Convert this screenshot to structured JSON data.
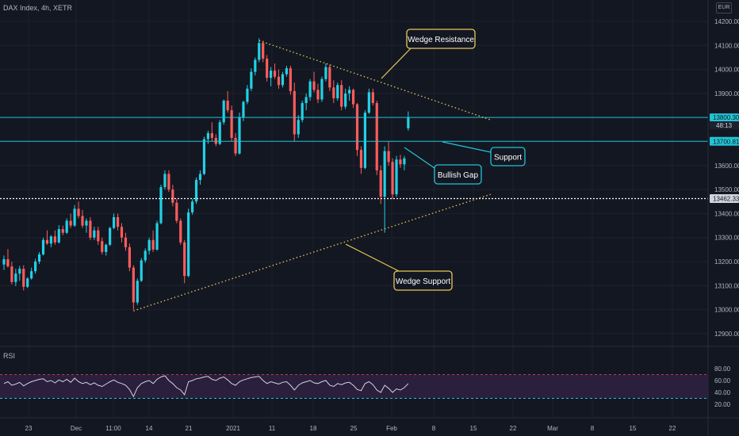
{
  "header": {
    "symbol": "DAX Index, 4h, XETR",
    "currency": "EUR",
    "rsi_label": "RSI"
  },
  "colors": {
    "background": "#131722",
    "up": "#26a69a",
    "down": "#ef5350",
    "up_bright": "#22d1e6",
    "down_bright": "#ff5c5c",
    "grid": "#1e222d",
    "hline": "#22c3d6",
    "dotted_line": "#ffffff",
    "wedge": "#e8c75a",
    "annotation_border_yellow": "#e8c75a",
    "annotation_border_cyan": "#22c3d6",
    "rsi_line": "#d1d4dc",
    "rsi_band": "#2a1f3d",
    "rsi_upper": "#c0394b",
    "rsi_lower": "#22c3d6"
  },
  "price_axis": {
    "labels": [
      "14200.000",
      "14100.000",
      "14000.000",
      "13900.000",
      "13800.300",
      "13700.818",
      "13600.000",
      "13500.000",
      "13462.332",
      "13400.000",
      "13300.000",
      "13200.000",
      "13100.000",
      "13000.000",
      "12900.000"
    ],
    "ticks": [
      14200,
      14100,
      14000,
      13900,
      13600,
      13500,
      13400,
      13300,
      13200,
      13100,
      13000,
      12900
    ],
    "tick_labels": [
      "14200.000",
      "14100.000",
      "14000.000",
      "13900.000",
      "13600.000",
      "13500.000",
      "13400.000",
      "13300.000",
      "13200.000",
      "13100.000",
      "13000.000",
      "12900.000"
    ]
  },
  "price_tags": {
    "current_price": "13800.300",
    "countdown": "48:13",
    "support_price": "13700.818",
    "dotted_price": "13462.332"
  },
  "time_axis": {
    "labels": [
      "23",
      "Dec",
      "11:00",
      "14",
      "21",
      "2021",
      "11",
      "18",
      "25",
      "Feb",
      "8",
      "15",
      "22",
      "Mar",
      "8",
      "15",
      "22"
    ]
  },
  "rsi_axis": {
    "labels": [
      "80.00",
      "60.00",
      "40.00",
      "20.00"
    ],
    "values": [
      80,
      60,
      40,
      20
    ],
    "upper_band": 70,
    "lower_band": 30
  },
  "annotations": {
    "wedge_resistance": "Wedge Resistance",
    "support": "Support",
    "bullish_gap": "Bullish Gap",
    "wedge_support": "Wedge Support"
  },
  "chart_data": {
    "type": "candlestick",
    "title": "DAX Index, 4h, XETR",
    "currency": "EUR",
    "timeframe": "4h",
    "ylim": [
      12850,
      14250
    ],
    "horizontal_lines": [
      {
        "label": "13800.300",
        "value": 13800.3,
        "style": "solid"
      },
      {
        "label": "13700.818",
        "value": 13700.818,
        "style": "solid"
      },
      {
        "label": "13462.332",
        "value": 13462.332,
        "style": "dotted"
      }
    ],
    "trendlines": [
      {
        "name": "Wedge Resistance",
        "from": {
          "bar": 65,
          "price": 14120
        },
        "to": {
          "bar": 124,
          "price": 13790
        }
      },
      {
        "name": "Wedge Support",
        "from": {
          "bar": 33,
          "price": 12995
        },
        "to": {
          "bar": 124,
          "price": 13480
        }
      }
    ],
    "candles": [
      [
        13188,
        13225,
        13165,
        13210
      ],
      [
        13210,
        13252,
        13175,
        13180
      ],
      [
        13180,
        13200,
        13105,
        13115
      ],
      [
        13115,
        13170,
        13098,
        13150
      ],
      [
        13150,
        13182,
        13120,
        13170
      ],
      [
        13170,
        13185,
        13080,
        13095
      ],
      [
        13095,
        13135,
        13090,
        13130
      ],
      [
        13130,
        13175,
        13125,
        13160
      ],
      [
        13160,
        13212,
        13150,
        13200
      ],
      [
        13200,
        13240,
        13190,
        13230
      ],
      [
        13230,
        13300,
        13225,
        13290
      ],
      [
        13290,
        13330,
        13270,
        13275
      ],
      [
        13275,
        13310,
        13260,
        13305
      ],
      [
        13305,
        13330,
        13270,
        13280
      ],
      [
        13280,
        13352,
        13275,
        13335
      ],
      [
        13335,
        13350,
        13310,
        13320
      ],
      [
        13320,
        13380,
        13315,
        13370
      ],
      [
        13370,
        13400,
        13340,
        13350
      ],
      [
        13350,
        13435,
        13345,
        13420
      ],
      [
        13420,
        13450,
        13380,
        13390
      ],
      [
        13390,
        13415,
        13340,
        13350
      ],
      [
        13350,
        13380,
        13320,
        13370
      ],
      [
        13370,
        13385,
        13290,
        13300
      ],
      [
        13300,
        13345,
        13290,
        13330
      ],
      [
        13330,
        13345,
        13270,
        13285
      ],
      [
        13285,
        13300,
        13230,
        13240
      ],
      [
        13240,
        13275,
        13225,
        13270
      ],
      [
        13270,
        13345,
        13265,
        13340
      ],
      [
        13340,
        13400,
        13335,
        13385
      ],
      [
        13385,
        13400,
        13330,
        13345
      ],
      [
        13345,
        13360,
        13280,
        13300
      ],
      [
        13300,
        13320,
        13245,
        13260
      ],
      [
        13260,
        13275,
        13160,
        13175
      ],
      [
        13175,
        13185,
        13000,
        13030
      ],
      [
        13030,
        13130,
        13020,
        13120
      ],
      [
        13120,
        13215,
        13115,
        13205
      ],
      [
        13205,
        13255,
        13195,
        13245
      ],
      [
        13245,
        13300,
        13230,
        13290
      ],
      [
        13290,
        13330,
        13240,
        13250
      ],
      [
        13250,
        13370,
        13245,
        13360
      ],
      [
        13360,
        13520,
        13355,
        13510
      ],
      [
        13510,
        13580,
        13500,
        13565
      ],
      [
        13565,
        13580,
        13490,
        13500
      ],
      [
        13500,
        13520,
        13430,
        13445
      ],
      [
        13445,
        13460,
        13360,
        13370
      ],
      [
        13370,
        13380,
        13270,
        13280
      ],
      [
        13280,
        13290,
        13110,
        13140
      ],
      [
        13140,
        13420,
        13135,
        13405
      ],
      [
        13405,
        13460,
        13395,
        13450
      ],
      [
        13450,
        13550,
        13440,
        13540
      ],
      [
        13540,
        13580,
        13520,
        13565
      ],
      [
        13565,
        13720,
        13560,
        13710
      ],
      [
        13710,
        13745,
        13690,
        13735
      ],
      [
        13735,
        13780,
        13700,
        13715
      ],
      [
        13715,
        13730,
        13680,
        13690
      ],
      [
        13690,
        13790,
        13685,
        13780
      ],
      [
        13780,
        13875,
        13770,
        13870
      ],
      [
        13870,
        13910,
        13820,
        13830
      ],
      [
        13830,
        13850,
        13700,
        13715
      ],
      [
        13715,
        13735,
        13640,
        13650
      ],
      [
        13650,
        13820,
        13645,
        13800
      ],
      [
        13800,
        13870,
        13785,
        13865
      ],
      [
        13865,
        13935,
        13855,
        13920
      ],
      [
        13920,
        14005,
        13910,
        13990
      ],
      [
        13990,
        14050,
        13975,
        14040
      ],
      [
        14040,
        14130,
        14030,
        14110
      ],
      [
        14110,
        14120,
        14030,
        14045
      ],
      [
        14045,
        14060,
        13950,
        13965
      ],
      [
        13965,
        14010,
        13930,
        13995
      ],
      [
        13995,
        14025,
        13960,
        13970
      ],
      [
        13970,
        14000,
        13920,
        13935
      ],
      [
        13935,
        13990,
        13925,
        13980
      ],
      [
        13980,
        14015,
        13970,
        14005
      ],
      [
        14005,
        14015,
        13895,
        13910
      ],
      [
        13910,
        13945,
        13700,
        13730
      ],
      [
        13730,
        13810,
        13715,
        13790
      ],
      [
        13790,
        13870,
        13780,
        13860
      ],
      [
        13860,
        13900,
        13830,
        13885
      ],
      [
        13885,
        13960,
        13870,
        13950
      ],
      [
        13950,
        13990,
        13905,
        13915
      ],
      [
        13915,
        13940,
        13860,
        13875
      ],
      [
        13875,
        13970,
        13865,
        13960
      ],
      [
        13960,
        14025,
        13950,
        14010
      ],
      [
        14010,
        14020,
        13910,
        13925
      ],
      [
        13925,
        13955,
        13860,
        13880
      ],
      [
        13880,
        13945,
        13870,
        13935
      ],
      [
        13935,
        13955,
        13830,
        13845
      ],
      [
        13845,
        13920,
        13835,
        13900
      ],
      [
        13900,
        13930,
        13870,
        13915
      ],
      [
        13915,
        13920,
        13840,
        13855
      ],
      [
        13855,
        13860,
        13640,
        13665
      ],
      [
        13665,
        13680,
        13565,
        13590
      ],
      [
        13590,
        13830,
        13585,
        13820
      ],
      [
        13820,
        13920,
        13815,
        13905
      ],
      [
        13905,
        13920,
        13850,
        13860
      ],
      [
        13860,
        13870,
        13560,
        13580
      ],
      [
        13580,
        13600,
        13440,
        13470
      ],
      [
        13470,
        13680,
        13320,
        13660
      ],
      [
        13660,
        13700,
        13600,
        13615
      ],
      [
        13615,
        13630,
        13460,
        13480
      ],
      [
        13480,
        13640,
        13470,
        13625
      ],
      [
        13625,
        13645,
        13590,
        13605
      ],
      [
        13605,
        13640,
        13580,
        13630
      ],
      [
        13755,
        13825,
        13745,
        13800
      ]
    ],
    "rsi": {
      "name": "RSI",
      "ylim": [
        0,
        100
      ],
      "bands": [
        30,
        70
      ],
      "values": [
        55,
        58,
        52,
        54,
        57,
        51,
        55,
        58,
        60,
        62,
        63,
        58,
        60,
        56,
        61,
        58,
        62,
        57,
        64,
        58,
        55,
        57,
        53,
        56,
        52,
        50,
        54,
        58,
        61,
        57,
        55,
        52,
        45,
        33,
        48,
        55,
        58,
        60,
        55,
        62,
        66,
        68,
        60,
        55,
        48,
        44,
        36,
        58,
        60,
        63,
        64,
        66,
        67,
        62,
        60,
        64,
        66,
        61,
        55,
        52,
        58,
        61,
        63,
        65,
        66,
        67,
        60,
        55,
        58,
        56,
        54,
        57,
        58,
        52,
        44,
        52,
        56,
        58,
        60,
        56,
        55,
        58,
        60,
        52,
        50,
        55,
        53,
        56,
        57,
        52,
        45,
        43,
        55,
        58,
        53,
        44,
        40,
        52,
        47,
        40,
        46,
        44,
        48,
        55
      ]
    }
  }
}
